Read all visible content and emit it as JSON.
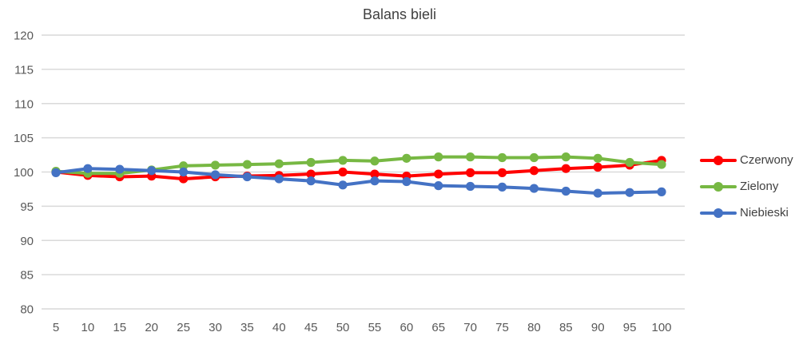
{
  "chart_data": {
    "type": "line",
    "title": "Balans bieli",
    "xlabel": "",
    "ylabel": "",
    "x": [
      5,
      10,
      15,
      20,
      25,
      30,
      35,
      40,
      45,
      50,
      55,
      60,
      65,
      70,
      75,
      80,
      85,
      90,
      95,
      100
    ],
    "series": [
      {
        "name": "Czerwony",
        "color": "#ff0000",
        "values": [
          100.0,
          99.5,
          99.3,
          99.4,
          99.0,
          99.3,
          99.4,
          99.5,
          99.7,
          100.0,
          99.7,
          99.4,
          99.7,
          99.9,
          99.9,
          100.2,
          100.5,
          100.7,
          101.0,
          101.7
        ]
      },
      {
        "name": "Zielony",
        "color": "#77b843",
        "values": [
          100.1,
          99.8,
          99.8,
          100.3,
          100.9,
          101.0,
          101.1,
          101.2,
          101.4,
          101.7,
          101.6,
          102.0,
          102.2,
          102.2,
          102.1,
          102.1,
          102.2,
          102.0,
          101.4,
          101.1
        ]
      },
      {
        "name": "Niebieski",
        "color": "#4472c4",
        "values": [
          99.9,
          100.5,
          100.4,
          100.2,
          100.0,
          99.6,
          99.3,
          99.0,
          98.7,
          98.1,
          98.7,
          98.6,
          98.0,
          97.9,
          97.8,
          97.6,
          97.2,
          96.9,
          97.0,
          97.1
        ]
      }
    ],
    "ylim": [
      80,
      120
    ],
    "y_tick_step": 5,
    "y_tick_labels": [
      "80",
      "85",
      "90",
      "95",
      "100",
      "105",
      "110",
      "115",
      "120"
    ],
    "x_tick_labels": [
      "5",
      "10",
      "15",
      "20",
      "25",
      "30",
      "35",
      "40",
      "45",
      "50",
      "55",
      "60",
      "65",
      "70",
      "75",
      "80",
      "85",
      "90",
      "95",
      "100"
    ],
    "grid": "horizontal",
    "grid_color": "#d9d9d9",
    "axis_text_color": "#595959",
    "title_color": "#404040",
    "legend_position": "right",
    "background": "#ffffff"
  }
}
